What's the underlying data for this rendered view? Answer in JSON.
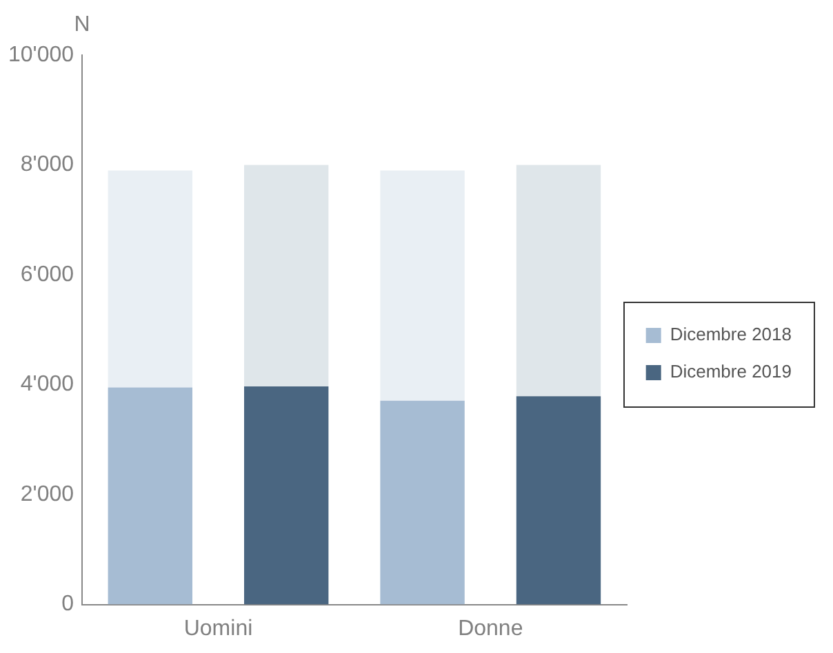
{
  "chart_data": {
    "type": "bar",
    "stacked": true,
    "ylabel": "N",
    "categories": [
      "Uomini",
      null,
      "Donne",
      null
    ],
    "series": [
      {
        "name": "Dicembre 2018",
        "color": "#a6bcd3",
        "values": [
          3950,
          null,
          3710,
          null
        ]
      },
      {
        "color": "#e9eff4",
        "values": [
          3950,
          null,
          4190,
          null
        ]
      },
      {
        "name": "Dicembre 2019",
        "color": "#4a6681",
        "values": [
          null,
          3970,
          null,
          3790
        ]
      },
      {
        "color": "#dfe6ea",
        "values": [
          null,
          4030,
          null,
          4210
        ]
      }
    ],
    "ylim": [
      0,
      10000
    ],
    "yticks": [
      {
        "value": 0,
        "label": "0"
      },
      {
        "value": 2000,
        "label": "2'000"
      },
      {
        "value": 4000,
        "label": "4'000"
      },
      {
        "value": 6000,
        "label": "6'000"
      },
      {
        "value": 8000,
        "label": "8'000"
      },
      {
        "value": 10000,
        "label": "10'000"
      }
    ],
    "grid": false,
    "legend": "right"
  }
}
